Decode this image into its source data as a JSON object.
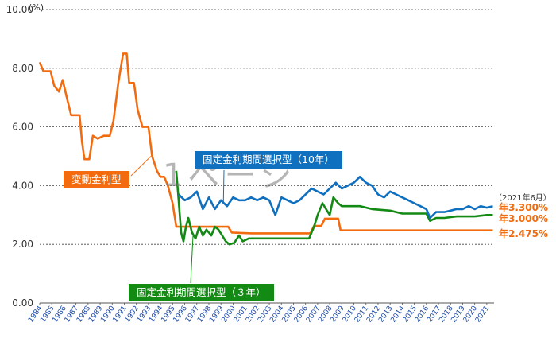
{
  "chart_data": {
    "type": "line",
    "y_unit": "(%)",
    "ylim": [
      0,
      10
    ],
    "y_ticks": [
      "0.00",
      "2.00",
      "4.00",
      "6.00",
      "8.00",
      "10.00"
    ],
    "x_ticks": [
      "1984",
      "1985",
      "1986",
      "1987",
      "1988",
      "1989",
      "1990",
      "1991",
      "1992",
      "1993",
      "1994",
      "1995",
      "1996",
      "1997",
      "1998",
      "1999",
      "2000",
      "2001",
      "2002",
      "2003",
      "2004",
      "2005",
      "2006",
      "2007",
      "2008",
      "2009",
      "2010",
      "2011",
      "2012",
      "2013",
      "2014",
      "2015",
      "2016",
      "2017",
      "2018",
      "2019",
      "2020",
      "2021"
    ],
    "xlim": [
      1984,
      2021.6
    ],
    "grid": "horizontal-dotted",
    "series": [
      {
        "name": "変動金利型",
        "color": "#f26b0f",
        "points": [
          [
            1984,
            8.2
          ],
          [
            1984.3,
            7.9
          ],
          [
            1984.9,
            7.9
          ],
          [
            1985.2,
            7.4
          ],
          [
            1985.6,
            7.2
          ],
          [
            1985.9,
            7.6
          ],
          [
            1986.3,
            6.9
          ],
          [
            1986.6,
            6.4
          ],
          [
            1987.3,
            6.4
          ],
          [
            1987.5,
            5.5
          ],
          [
            1987.7,
            4.9
          ],
          [
            1988.1,
            4.9
          ],
          [
            1988.4,
            5.7
          ],
          [
            1988.8,
            5.6
          ],
          [
            1989.3,
            5.7
          ],
          [
            1989.8,
            5.7
          ],
          [
            1990.1,
            6.2
          ],
          [
            1990.5,
            7.5
          ],
          [
            1990.9,
            8.5
          ],
          [
            1991.2,
            8.5
          ],
          [
            1991.4,
            7.5
          ],
          [
            1991.8,
            7.5
          ],
          [
            1992.1,
            6.6
          ],
          [
            1992.5,
            6.0
          ],
          [
            1993.0,
            6.0
          ],
          [
            1993.3,
            5.0
          ],
          [
            1993.7,
            4.5
          ],
          [
            1994.0,
            4.3
          ],
          [
            1994.3,
            4.3
          ],
          [
            1994.6,
            4.0
          ],
          [
            1995.0,
            3.4
          ],
          [
            1995.3,
            2.6
          ],
          [
            1995.7,
            2.6
          ],
          [
            1996.5,
            2.6
          ],
          [
            1996.8,
            2.6
          ],
          [
            1999.6,
            2.6
          ],
          [
            1999.9,
            2.4
          ],
          [
            2001.5,
            2.375
          ],
          [
            2006.4,
            2.375
          ],
          [
            2006.7,
            2.625
          ],
          [
            2007.3,
            2.625
          ],
          [
            2007.6,
            2.875
          ],
          [
            2008.7,
            2.875
          ],
          [
            2008.9,
            2.475
          ],
          [
            2021.5,
            2.475
          ]
        ]
      },
      {
        "name": "固定金利期間選択型（３年）",
        "color": "#138a13",
        "points": [
          [
            1995.3,
            4.5
          ],
          [
            1995.5,
            3.5
          ],
          [
            1995.7,
            2.4
          ],
          [
            1995.9,
            2.1
          ],
          [
            1996.1,
            2.6
          ],
          [
            1996.3,
            2.9
          ],
          [
            1996.6,
            2.4
          ],
          [
            1996.9,
            2.2
          ],
          [
            1997.2,
            2.6
          ],
          [
            1997.5,
            2.3
          ],
          [
            1997.8,
            2.5
          ],
          [
            1998.2,
            2.3
          ],
          [
            1998.5,
            2.6
          ],
          [
            1998.8,
            2.5
          ],
          [
            1999.1,
            2.3
          ],
          [
            1999.4,
            2.1
          ],
          [
            1999.7,
            2.0
          ],
          [
            2000.1,
            2.05
          ],
          [
            2000.5,
            2.3
          ],
          [
            2000.8,
            2.1
          ],
          [
            2001.3,
            2.2
          ],
          [
            2001.8,
            2.2
          ],
          [
            2005.5,
            2.2
          ],
          [
            2006.3,
            2.2
          ],
          [
            2006.7,
            2.6
          ],
          [
            2007.0,
            3.0
          ],
          [
            2007.4,
            3.4
          ],
          [
            2007.7,
            3.2
          ],
          [
            2008.0,
            3.0
          ],
          [
            2008.3,
            3.6
          ],
          [
            2008.7,
            3.4
          ],
          [
            2009.0,
            3.3
          ],
          [
            2009.5,
            3.3
          ],
          [
            2010.5,
            3.3
          ],
          [
            2011.5,
            3.2
          ],
          [
            2013.0,
            3.15
          ],
          [
            2014.0,
            3.05
          ],
          [
            2016.0,
            3.05
          ],
          [
            2016.3,
            2.8
          ],
          [
            2016.8,
            2.9
          ],
          [
            2017.5,
            2.9
          ],
          [
            2018.5,
            2.95
          ],
          [
            2020.0,
            2.95
          ],
          [
            2021.0,
            3.0
          ],
          [
            2021.5,
            3.0
          ]
        ]
      },
      {
        "name": "固定金利期間選択型（10年）",
        "color": "#1070c0",
        "points": [
          [
            1995.5,
            3.7
          ],
          [
            1996.0,
            3.5
          ],
          [
            1996.5,
            3.6
          ],
          [
            1997.0,
            3.8
          ],
          [
            1997.5,
            3.2
          ],
          [
            1998.0,
            3.6
          ],
          [
            1998.5,
            3.2
          ],
          [
            1999.0,
            3.5
          ],
          [
            1999.5,
            3.3
          ],
          [
            2000.0,
            3.6
          ],
          [
            2000.5,
            3.5
          ],
          [
            2001.0,
            3.5
          ],
          [
            2001.5,
            3.6
          ],
          [
            2002.0,
            3.5
          ],
          [
            2002.5,
            3.6
          ],
          [
            2003.0,
            3.5
          ],
          [
            2003.5,
            3.0
          ],
          [
            2004.0,
            3.6
          ],
          [
            2004.5,
            3.5
          ],
          [
            2005.0,
            3.4
          ],
          [
            2005.5,
            3.5
          ],
          [
            2006.0,
            3.7
          ],
          [
            2006.5,
            3.9
          ],
          [
            2007.0,
            3.8
          ],
          [
            2007.5,
            3.7
          ],
          [
            2008.0,
            3.9
          ],
          [
            2008.5,
            4.1
          ],
          [
            2009.0,
            3.9
          ],
          [
            2009.5,
            4.0
          ],
          [
            2010.0,
            4.1
          ],
          [
            2010.5,
            4.3
          ],
          [
            2011.0,
            4.1
          ],
          [
            2011.5,
            4.0
          ],
          [
            2012.0,
            3.7
          ],
          [
            2012.5,
            3.6
          ],
          [
            2013.0,
            3.8
          ],
          [
            2013.5,
            3.7
          ],
          [
            2014.0,
            3.6
          ],
          [
            2014.5,
            3.5
          ],
          [
            2015.0,
            3.4
          ],
          [
            2015.5,
            3.3
          ],
          [
            2016.0,
            3.2
          ],
          [
            2016.3,
            2.9
          ],
          [
            2016.8,
            3.1
          ],
          [
            2017.5,
            3.1
          ],
          [
            2018.0,
            3.15
          ],
          [
            2018.5,
            3.2
          ],
          [
            2019.0,
            3.2
          ],
          [
            2019.5,
            3.3
          ],
          [
            2020.0,
            3.2
          ],
          [
            2020.5,
            3.3
          ],
          [
            2021.0,
            3.25
          ],
          [
            2021.5,
            3.3
          ]
        ]
      }
    ]
  },
  "callouts": {
    "variable": "変動金利型",
    "fixed10": "固定金利期間選択型（10年）",
    "fixed3": "固定金利期間選択型（３年）"
  },
  "end_labels": {
    "as_of": "（2021年6月）",
    "fixed10_rate": "年3.300%",
    "fixed3_rate": "年3.000%",
    "variable_rate": "年2.475%"
  },
  "watermark": "1ページ"
}
